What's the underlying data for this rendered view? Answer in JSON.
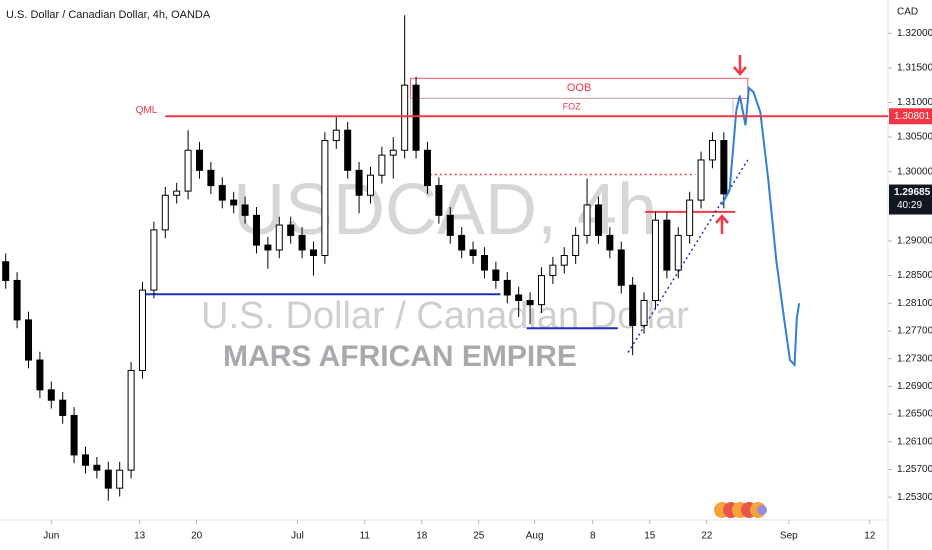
{
  "chart_data": {
    "type": "candlestick",
    "title": "U.S. Dollar / Canadian Dollar, 4h, OANDA",
    "currency": "CAD",
    "watermark": {
      "symbol": "USDCAD, 4h",
      "name": "U.S. Dollar / Canadian Dollar",
      "author": "MARS AFRICAN EMPIRE"
    },
    "up_color": "#ffffff",
    "down_color": "#000000",
    "open": [
      1.287,
      1.2843,
      1.2786,
      1.2728,
      1.2685,
      1.267,
      1.2648,
      1.2591,
      1.2576,
      1.2569,
      1.2543,
      1.2569,
      1.2713,
      1.2829,
      1.2916,
      1.2966,
      1.2972,
      1.3031,
      1.3002,
      1.298,
      1.2959,
      1.2952,
      1.2937,
      1.2894,
      1.2887,
      1.2923,
      1.2908,
      1.2887,
      1.2879,
      1.3045,
      1.306,
      1.3002,
      1.2966,
      1.2995,
      1.3024,
      1.3031,
      1.3125,
      1.3031,
      1.298,
      1.2937,
      1.2908,
      1.2887,
      1.2879,
      1.2858,
      1.2843,
      1.2822,
      1.2814,
      1.2808,
      1.285,
      1.2865,
      1.2879,
      1.2908,
      1.2952,
      1.2908,
      1.2887,
      1.2836,
      1.2778,
      1.2814,
      1.293,
      1.2858,
      1.2908,
      1.2959,
      1.3017,
      1.3045
    ],
    "high": [
      1.2882,
      1.2855,
      1.2798,
      1.274,
      1.2697,
      1.2682,
      1.266,
      1.2603,
      1.2588,
      1.2581,
      1.2581,
      1.2725,
      1.2841,
      1.2928,
      1.2978,
      1.2984,
      1.306,
      1.3043,
      1.3014,
      1.2992,
      1.2971,
      1.2964,
      1.2949,
      1.2906,
      1.2935,
      1.2935,
      1.292,
      1.2899,
      1.3057,
      1.308,
      1.3072,
      1.3014,
      1.3007,
      1.3036,
      1.305,
      1.3226,
      1.3137,
      1.3043,
      1.2992,
      1.2949,
      1.292,
      1.2899,
      1.2891,
      1.287,
      1.2855,
      1.2834,
      1.2826,
      1.2862,
      1.2877,
      1.2891,
      1.292,
      1.299,
      1.2964,
      1.292,
      1.2899,
      1.2848,
      1.2826,
      1.2942,
      1.2942,
      1.292,
      1.2971,
      1.3029,
      1.3057,
      1.3057
    ],
    "low": [
      1.2831,
      1.2774,
      1.2716,
      1.2673,
      1.2658,
      1.2636,
      1.2579,
      1.2564,
      1.2557,
      1.2525,
      1.2531,
      1.2557,
      1.2701,
      1.2817,
      1.2904,
      1.2954,
      1.296,
      1.299,
      1.2968,
      1.2947,
      1.294,
      1.2925,
      1.2882,
      1.286,
      1.2875,
      1.2896,
      1.2875,
      1.285,
      1.2867,
      1.3033,
      1.299,
      1.294,
      1.2954,
      1.2983,
      1.299,
      1.3019,
      1.3019,
      1.2968,
      1.2925,
      1.2896,
      1.2875,
      1.2867,
      1.2846,
      1.2831,
      1.281,
      1.279,
      1.278,
      1.2796,
      1.2838,
      1.2853,
      1.2867,
      1.2896,
      1.2896,
      1.2875,
      1.2824,
      1.2735,
      1.2766,
      1.2802,
      1.2846,
      1.2846,
      1.2896,
      1.2947,
      1.3005,
      1.2947
    ],
    "close": [
      1.2843,
      1.2786,
      1.2728,
      1.2685,
      1.267,
      1.2648,
      1.2591,
      1.2576,
      1.2569,
      1.2543,
      1.2569,
      1.2713,
      1.2829,
      1.2916,
      1.2966,
      1.2972,
      1.3031,
      1.3002,
      1.298,
      1.2959,
      1.2952,
      1.2937,
      1.2894,
      1.2887,
      1.2923,
      1.2908,
      1.2887,
      1.2879,
      1.3045,
      1.306,
      1.3002,
      1.2966,
      1.2995,
      1.3024,
      1.3031,
      1.3125,
      1.3031,
      1.298,
      1.2937,
      1.2908,
      1.2887,
      1.2879,
      1.2858,
      1.2843,
      1.2822,
      1.2814,
      1.2808,
      1.285,
      1.2865,
      1.2879,
      1.2908,
      1.2952,
      1.2908,
      1.2887,
      1.2836,
      1.2778,
      1.2814,
      1.293,
      1.2858,
      1.2908,
      1.2959,
      1.3017,
      1.3045,
      1.2968
    ],
    "xlim": [
      -0.5,
      77.4
    ],
    "ylim": [
      1.2497,
      1.3248
    ],
    "xticks": [
      {
        "value": 4,
        "label": "Jun"
      },
      {
        "value": 11.75,
        "label": "13"
      },
      {
        "value": 16.75,
        "label": "20"
      },
      {
        "value": 25.6,
        "label": "Jul"
      },
      {
        "value": 31.5,
        "label": "11"
      },
      {
        "value": 36.5,
        "label": "18"
      },
      {
        "value": 41.5,
        "label": "25"
      },
      {
        "value": 46.4,
        "label": "Aug"
      },
      {
        "value": 51.5,
        "label": "8"
      },
      {
        "value": 56.5,
        "label": "15"
      },
      {
        "value": 61.5,
        "label": "22"
      },
      {
        "value": 68.7,
        "label": "Sep"
      },
      {
        "value": 75.8,
        "label": "12"
      }
    ],
    "yticks": [
      {
        "value": 1.32,
        "label": "1.32000"
      },
      {
        "value": 1.315,
        "label": "1.31500"
      },
      {
        "value": 1.31,
        "label": "1.31000"
      },
      {
        "value": 1.305,
        "label": "1.30500"
      },
      {
        "value": 1.3,
        "label": "1.30000"
      },
      {
        "value": 1.29,
        "label": "1.29000"
      },
      {
        "value": 1.285,
        "label": "1.28500"
      },
      {
        "value": 1.281,
        "label": "1.28100"
      },
      {
        "value": 1.277,
        "label": "1.27700"
      },
      {
        "value": 1.273,
        "label": "1.27300"
      },
      {
        "value": 1.269,
        "label": "1.26900"
      },
      {
        "value": 1.265,
        "label": "1.26500"
      },
      {
        "value": 1.261,
        "label": "1.26100"
      },
      {
        "value": 1.257,
        "label": "1.25700"
      },
      {
        "value": 1.253,
        "label": "1.25300"
      }
    ],
    "last_price": {
      "value": 1.29685,
      "label": "1.29685",
      "countdown": "40:29"
    },
    "projection": {
      "color": "#2f7fd4",
      "x": [
        62.8,
        63.5,
        64.1,
        64.4,
        64.9,
        65.2,
        65.6,
        66.2,
        66.9,
        67.6,
        68.3,
        68.8,
        69.2,
        69.4,
        69.6
      ],
      "values": [
        1.2952,
        1.2973,
        1.3089,
        1.311,
        1.3067,
        1.3121,
        1.3115,
        1.3086,
        1.2988,
        1.2872,
        1.2786,
        1.2728,
        1.2721,
        1.2788,
        1.281
      ]
    },
    "qml": {
      "name": "QML",
      "value": 1.30801,
      "label": "1.30801",
      "x": [
        14.0,
        77.4
      ],
      "color": "#f23645"
    },
    "zones": [
      {
        "name": "OOB",
        "top": 1.3135,
        "bottom": 1.3106,
        "x": [
          35.5,
          65.1
        ],
        "color": "#f23645"
      },
      {
        "name": "FOZ",
        "top": 1.3106,
        "bottom": 1.30801,
        "x": [
          35.5,
          63.8
        ],
        "color": "#f23645"
      }
    ],
    "levels": [
      {
        "value": 1.2996,
        "x": [
          37.2,
          60.5
        ],
        "color": "#f23645",
        "style": "dotted"
      },
      {
        "value": 1.2942,
        "x": [
          56.1,
          64.0
        ],
        "color": "#f23645",
        "style": "solid"
      },
      {
        "value": 1.2823,
        "x": [
          11.8,
          43.4
        ],
        "color": "#1c2fbf",
        "style": "solid"
      },
      {
        "value": 1.2774,
        "x": [
          45.7,
          53.7
        ],
        "color": "#1c2fbf",
        "style": "solid"
      }
    ],
    "trendline": {
      "x": [
        54.6,
        65.1
      ],
      "values": [
        1.2739,
        1.3017
      ],
      "color": "#1c2fbf"
    }
  }
}
